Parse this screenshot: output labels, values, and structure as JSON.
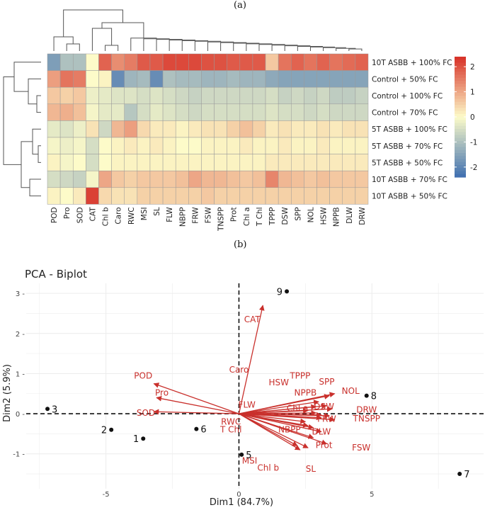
{
  "panel_a_label": "(a)",
  "panel_b_label": "(b)",
  "chart_data": [
    {
      "type": "heatmap",
      "title": "",
      "rows": [
        "10T ASBB + 100% FC",
        "Control + 50% FC",
        "Control + 100% FC",
        "Control + 70% FC",
        "5T ASBB + 100% FC",
        "5T ASBB + 70% FC",
        "5T ASBB + 50% FC",
        "10T ASBB + 70% FC",
        "10T ASBB + 50% FC"
      ],
      "columns": [
        "POD",
        "Pro",
        "SOD",
        "CAT",
        "Chl b",
        "Caro",
        "RWC",
        "MSI",
        "SL",
        "FLW",
        "NBPP",
        "FRW",
        "FSW",
        "TNSPP",
        "Prot",
        "Chl a",
        "T Chl",
        "TPPP",
        "DSW",
        "SPP",
        "NOL",
        "HSW",
        "NPPB",
        "DLW",
        "DRW"
      ],
      "values": [
        [
          -1.6,
          -1.0,
          -1.0,
          0.0,
          1.8,
          1.3,
          1.5,
          1.9,
          1.9,
          2.1,
          2.1,
          2.1,
          2.0,
          2.0,
          1.9,
          1.9,
          1.9,
          0.6,
          1.6,
          1.8,
          1.6,
          1.8,
          1.6,
          1.7,
          1.8
        ],
        [
          1.1,
          1.6,
          1.5,
          0.0,
          0.1,
          -1.9,
          -1.2,
          -1.1,
          -1.9,
          -1.0,
          -1.1,
          -1.1,
          -1.2,
          -1.2,
          -1.1,
          -1.2,
          -1.2,
          -1.4,
          -1.5,
          -1.5,
          -1.5,
          -1.5,
          -1.5,
          -1.5,
          -1.5
        ],
        [
          0.6,
          0.5,
          0.6,
          -0.2,
          -0.3,
          -0.4,
          -0.4,
          -0.5,
          -0.4,
          -0.5,
          -0.6,
          -0.7,
          -0.6,
          -0.6,
          -0.6,
          -0.6,
          -0.6,
          -0.5,
          -0.7,
          -0.6,
          -0.7,
          -0.6,
          -0.8,
          -0.8,
          -0.7
        ],
        [
          0.8,
          0.9,
          0.7,
          -0.1,
          -0.3,
          -0.3,
          -0.9,
          -0.5,
          -0.3,
          -0.4,
          -0.5,
          -0.6,
          -0.5,
          -0.5,
          -0.5,
          -0.5,
          -0.5,
          -0.4,
          -0.5,
          -0.5,
          -0.6,
          -0.5,
          -0.6,
          -0.6,
          -0.6
        ],
        [
          -0.3,
          -0.4,
          -0.2,
          0.3,
          -0.6,
          0.8,
          1.1,
          0.4,
          0.2,
          0.2,
          0.1,
          0.2,
          0.3,
          0.3,
          0.5,
          0.7,
          0.5,
          0.2,
          0.3,
          0.2,
          0.2,
          0.3,
          0.2,
          0.3,
          0.3
        ],
        [
          -0.1,
          -0.2,
          -0.1,
          -0.5,
          0.0,
          0.1,
          0.2,
          0.1,
          0.2,
          0.1,
          0.0,
          0.0,
          0.1,
          0.1,
          0.1,
          0.2,
          0.1,
          0.1,
          0.2,
          0.1,
          0.1,
          0.2,
          0.1,
          0.1,
          0.1
        ],
        [
          0.1,
          -0.1,
          0.0,
          -0.5,
          0.0,
          0.1,
          0.1,
          0.1,
          0.1,
          0.1,
          0.1,
          0.1,
          0.1,
          0.1,
          0.1,
          0.1,
          0.1,
          0.2,
          0.2,
          0.2,
          0.2,
          0.2,
          0.2,
          0.2,
          0.2
        ],
        [
          -0.5,
          -0.6,
          -0.7,
          -0.1,
          1.0,
          0.6,
          0.5,
          0.6,
          0.6,
          0.6,
          0.7,
          1.0,
          0.8,
          0.8,
          0.7,
          0.6,
          0.7,
          1.4,
          0.8,
          0.7,
          0.6,
          0.7,
          0.6,
          0.6,
          0.6
        ],
        [
          0.1,
          0.0,
          0.2,
          2.2,
          0.4,
          0.3,
          0.3,
          0.5,
          0.5,
          0.5,
          0.5,
          0.5,
          0.6,
          0.5,
          0.5,
          0.5,
          0.5,
          0.5,
          0.5,
          0.5,
          0.5,
          0.5,
          0.5,
          0.5,
          0.5
        ]
      ],
      "color_scale": {
        "min": -2.4,
        "max": 2.4,
        "low": "#3f6fb0",
        "mid": "#fdfbc9",
        "high": "#d73027"
      },
      "legend_ticks": [
        2,
        1,
        0,
        -1,
        -2
      ],
      "legend_tick_labels": [
        "2",
        "1",
        "0",
        "-1",
        "-2"
      ]
    },
    {
      "type": "scatter",
      "title": "PCA - Biplot",
      "xlabel": "Dim1 (84.7%)",
      "ylabel": "Dim2 (5.9%)",
      "xlim": [
        -8.0,
        9.2
      ],
      "ylim": [
        -1.87,
        3.25
      ],
      "x_ticks": [
        -5,
        0,
        5
      ],
      "x_tick_labels": [
        "-5",
        "0",
        "5"
      ],
      "y_ticks": [
        3,
        2,
        1,
        0,
        -1
      ],
      "y_tick_labels": [
        "3 -",
        "2 -",
        "1 -",
        "0 -",
        "-1 -"
      ],
      "grid": true,
      "points": [
        {
          "label": "1",
          "x": -3.6,
          "y": -0.62
        },
        {
          "label": "2",
          "x": -4.8,
          "y": -0.4
        },
        {
          "label": "3",
          "x": -7.2,
          "y": 0.12
        },
        {
          "label": "5",
          "x": 0.1,
          "y": -1.02
        },
        {
          "label": "6",
          "x": -1.6,
          "y": -0.38
        },
        {
          "label": "7",
          "x": 8.3,
          "y": -1.5
        },
        {
          "label": "8",
          "x": 4.8,
          "y": 0.45
        },
        {
          "label": "9",
          "x": 1.8,
          "y": 3.05
        }
      ],
      "point_label_offsets": {
        "1": "left",
        "2": "left",
        "3": "right",
        "5": "right",
        "6": "right",
        "7": "right",
        "8": "right",
        "9": "left"
      },
      "loadings": [
        {
          "name": "CAT",
          "x": 0.9,
          "y": 2.7
        },
        {
          "name": "POD",
          "x": -3.2,
          "y": 0.75
        },
        {
          "name": "Pro",
          "x": -3.1,
          "y": 0.4
        },
        {
          "name": "SOD",
          "x": -3.2,
          "y": 0.05
        },
        {
          "name": "Caro",
          "x": 3.6,
          "y": 0.5
        },
        {
          "name": "TPPP",
          "x": 3.4,
          "y": 0.45
        },
        {
          "name": "HSW",
          "x": 3.0,
          "y": 0.3
        },
        {
          "name": "SPP",
          "x": 3.3,
          "y": 0.2
        },
        {
          "name": "NOL",
          "x": 3.5,
          "y": 0.12
        },
        {
          "name": "NPPB",
          "x": 2.9,
          "y": 0.18
        },
        {
          "name": "FLW",
          "x": 2.6,
          "y": 0.08
        },
        {
          "name": "Chl a",
          "x": 2.9,
          "y": 0.02
        },
        {
          "name": "DSW",
          "x": 3.1,
          "y": -0.03
        },
        {
          "name": "DRW",
          "x": 3.4,
          "y": -0.05
        },
        {
          "name": "FRW",
          "x": 3.1,
          "y": -0.1
        },
        {
          "name": "TNSPP",
          "x": 3.6,
          "y": -0.15
        },
        {
          "name": "RWC",
          "x": 2.5,
          "y": -0.2
        },
        {
          "name": "T Chl",
          "x": 2.6,
          "y": -0.3
        },
        {
          "name": "NBPP",
          "x": 2.8,
          "y": -0.35
        },
        {
          "name": "DLW",
          "x": 3.1,
          "y": -0.45
        },
        {
          "name": "Prot",
          "x": 2.8,
          "y": -0.6
        },
        {
          "name": "FSW",
          "x": 3.3,
          "y": -0.75
        },
        {
          "name": "MSI",
          "x": 2.2,
          "y": -0.8
        },
        {
          "name": "SL",
          "x": 2.6,
          "y": -0.85
        },
        {
          "name": "Chl b",
          "x": 2.3,
          "y": -0.9
        }
      ],
      "loading_label_text": [
        {
          "name": "CAT",
          "x": 0.5,
          "y": 2.35
        },
        {
          "name": "POD",
          "x": -3.6,
          "y": 0.95
        },
        {
          "name": "Pro",
          "x": -2.9,
          "y": 0.52
        },
        {
          "name": "SOD",
          "x": -3.5,
          "y": 0.02
        },
        {
          "name": "Caro",
          "x": 0.0,
          "y": 1.1
        },
        {
          "name": "TPPP",
          "x": 2.3,
          "y": 0.95
        },
        {
          "name": "HSW",
          "x": 1.5,
          "y": 0.78
        },
        {
          "name": "SPP",
          "x": 3.3,
          "y": 0.8
        },
        {
          "name": "NOL",
          "x": 4.2,
          "y": 0.57
        },
        {
          "name": "NPPB",
          "x": 2.5,
          "y": 0.52
        },
        {
          "name": "FLW",
          "x": 0.3,
          "y": 0.22
        },
        {
          "name": "Chl a",
          "x": 2.2,
          "y": 0.13
        },
        {
          "name": "DSW",
          "x": 3.2,
          "y": 0.18
        },
        {
          "name": "DRW",
          "x": 4.8,
          "y": 0.1
        },
        {
          "name": "FRW",
          "x": 3.3,
          "y": -0.13
        },
        {
          "name": "TNSPP",
          "x": 4.8,
          "y": -0.12
        },
        {
          "name": "RWC",
          "x": -0.3,
          "y": -0.2
        },
        {
          "name": "T Chl",
          "x": -0.3,
          "y": -0.4
        },
        {
          "name": "NBPP",
          "x": 1.9,
          "y": -0.4
        },
        {
          "name": "DLW",
          "x": 3.1,
          "y": -0.45
        },
        {
          "name": "Prot",
          "x": 3.2,
          "y": -0.78
        },
        {
          "name": "FSW",
          "x": 4.6,
          "y": -0.85
        },
        {
          "name": "MSI",
          "x": 0.4,
          "y": -1.17
        },
        {
          "name": "SL",
          "x": 2.7,
          "y": -1.38
        },
        {
          "name": "Chl b",
          "x": 1.1,
          "y": -1.35
        }
      ],
      "arrow_color": "#c9302c",
      "point_color": "#111111"
    }
  ]
}
